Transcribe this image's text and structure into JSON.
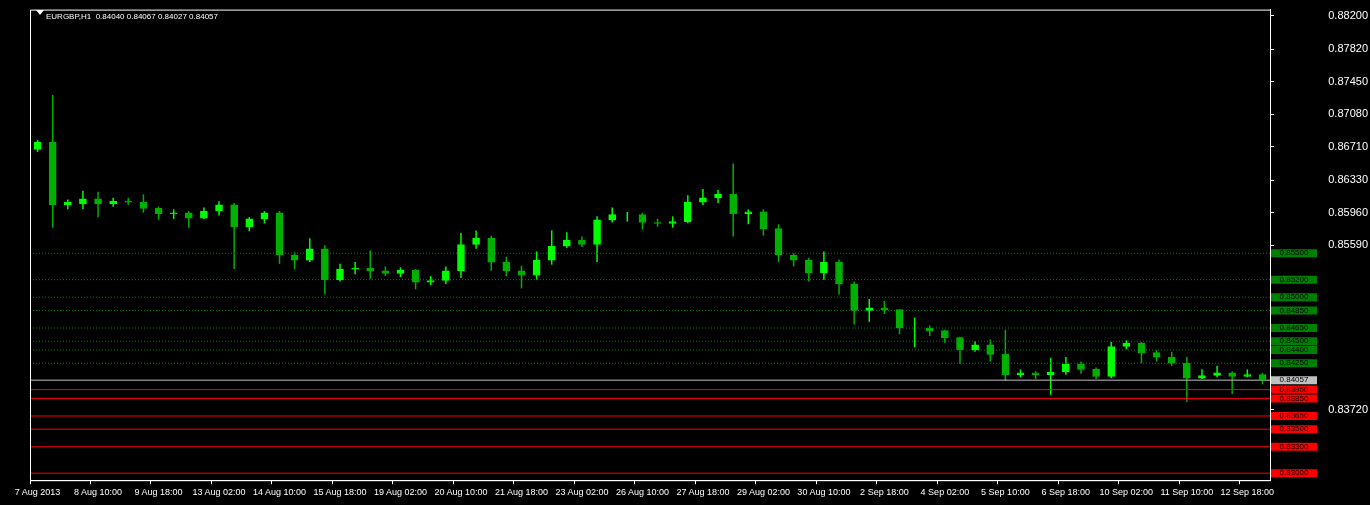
{
  "chart_data": {
    "type": "candlestick",
    "title": "EURGBP,H1  0.84040 0.84067 0.84027 0.84057",
    "categories": [
      "7 Aug 2013",
      null,
      null,
      null,
      "8 Aug 10:00",
      null,
      null,
      null,
      "9 Aug 18:00",
      null,
      null,
      null,
      "13 Aug 02:00",
      null,
      null,
      null,
      "14 Aug 10:00",
      null,
      null,
      null,
      "15 Aug 18:00",
      null,
      null,
      null,
      "19 Aug 02:00",
      null,
      null,
      null,
      "20 Aug 10:00",
      null,
      null,
      null,
      "21 Aug 18:00",
      null,
      null,
      null,
      "23 Aug 02:00",
      null,
      null,
      null,
      "26 Aug 10:00",
      null,
      null,
      null,
      "27 Aug 18:00",
      null,
      null,
      null,
      "29 Aug 02:00",
      null,
      null,
      null,
      "30 Aug 10:00",
      null,
      null,
      null,
      "2 Sep 18:00",
      null,
      null,
      null,
      "4 Sep 02:00",
      null,
      null,
      null,
      "5 Sep 10:00",
      null,
      null,
      null,
      "6 Sep 18:00",
      null,
      null,
      null,
      "10 Sep 02:00",
      null,
      null,
      null,
      "11 Sep 10:00",
      null,
      null,
      null,
      "12 Sep 18:00",
      null
    ],
    "colors": [
      "#00ff00",
      "#00b000",
      "#00ff00",
      "#00ff00",
      "#00b000",
      "#00ff00",
      "#00b000",
      "#00b000",
      "#00b000",
      "#00ff00",
      "#00b000",
      "#00ff00",
      "#00ff00",
      "#00b000",
      "#00ff00",
      "#00ff00",
      "#00b000",
      "#00b000",
      "#00ff00",
      "#00b000",
      "#00ff00",
      "#00ff00",
      "#00b000",
      "#00b000",
      "#00ff00",
      "#00b000",
      "#00ff00",
      "#00ff00",
      "#00ff00",
      "#00ff00",
      "#00b000",
      "#00b000",
      "#00b000",
      "#00ff00",
      "#00ff00",
      "#00ff00",
      "#00b000",
      "#00ff00",
      "#00ff00",
      "#00ff00",
      "#00b000",
      "#00b000",
      "#00ff00",
      "#00ff00",
      "#00ff00",
      "#00ff00",
      "#00b000",
      "#00ff00",
      "#00b000",
      "#00b000",
      "#00b000",
      "#00b000",
      "#00ff00",
      "#00b000",
      "#00b000",
      "#00ff00",
      "#00b000",
      "#00b000",
      "#00ff00",
      "#00b000",
      "#00b000",
      "#00b000",
      "#00ff00",
      "#00b000",
      "#00b000",
      "#00ff00",
      "#00b000",
      "#00ff00",
      "#00ff00",
      "#00b000",
      "#00b000",
      "#00ff00",
      "#00ff00",
      "#00b000",
      "#00b000",
      "#00b000",
      "#00b000",
      "#00ff00",
      "#00ff00",
      "#00b000",
      "#00ff00",
      "#00b000"
    ],
    "ohlc": [
      [
        0.8668,
        0.8679,
        0.8665,
        0.8676
      ],
      [
        0.8676,
        0.873,
        0.8579,
        0.8605
      ],
      [
        0.8605,
        0.8611,
        0.86,
        0.8608
      ],
      [
        0.8606,
        0.8621,
        0.86,
        0.8612
      ],
      [
        0.8612,
        0.862,
        0.8591,
        0.8606
      ],
      [
        0.8606,
        0.8613,
        0.8603,
        0.8609
      ],
      [
        0.8609,
        0.8613,
        0.8605,
        0.8608
      ],
      [
        0.8608,
        0.8617,
        0.8596,
        0.8601
      ],
      [
        0.8601,
        0.8603,
        0.8588,
        0.8595
      ],
      [
        0.8595,
        0.86,
        0.8589,
        0.8596
      ],
      [
        0.8596,
        0.8598,
        0.8579,
        0.859
      ],
      [
        0.859,
        0.8602,
        0.8589,
        0.8598
      ],
      [
        0.8598,
        0.8609,
        0.8593,
        0.8605
      ],
      [
        0.8605,
        0.8607,
        0.8532,
        0.858
      ],
      [
        0.858,
        0.8591,
        0.8575,
        0.8589
      ],
      [
        0.8589,
        0.8598,
        0.8584,
        0.8596
      ],
      [
        0.8596,
        0.8598,
        0.8538,
        0.8548
      ],
      [
        0.8548,
        0.8551,
        0.8532,
        0.8542
      ],
      [
        0.8542,
        0.8567,
        0.854,
        0.8555
      ],
      [
        0.8555,
        0.8559,
        0.8503,
        0.852
      ],
      [
        0.852,
        0.8538,
        0.8518,
        0.8532
      ],
      [
        0.8532,
        0.854,
        0.8526,
        0.8533
      ],
      [
        0.8533,
        0.8553,
        0.8521,
        0.853
      ],
      [
        0.853,
        0.8535,
        0.8524,
        0.8527
      ],
      [
        0.8527,
        0.8534,
        0.8523,
        0.8531
      ],
      [
        0.8531,
        0.8532,
        0.8509,
        0.8517
      ],
      [
        0.8517,
        0.8524,
        0.8514,
        0.8519
      ],
      [
        0.8519,
        0.8535,
        0.8515,
        0.853
      ],
      [
        0.853,
        0.8573,
        0.8522,
        0.856
      ],
      [
        0.856,
        0.8576,
        0.8555,
        0.8567
      ],
      [
        0.8567,
        0.857,
        0.853,
        0.854
      ],
      [
        0.854,
        0.8546,
        0.8524,
        0.853
      ],
      [
        0.853,
        0.8536,
        0.851,
        0.8525
      ],
      [
        0.8525,
        0.8552,
        0.852,
        0.8542
      ],
      [
        0.8542,
        0.8576,
        0.8537,
        0.8558
      ],
      [
        0.8558,
        0.8574,
        0.8556,
        0.8565
      ],
      [
        0.8565,
        0.8569,
        0.8557,
        0.856
      ],
      [
        0.856,
        0.8592,
        0.854,
        0.8588
      ],
      [
        0.8588,
        0.8602,
        0.8585,
        0.8594
      ],
      [
        0.8594,
        0.8597,
        0.8586,
        0.8594
      ],
      [
        0.8594,
        0.8596,
        0.8577,
        0.8585
      ],
      [
        0.8585,
        0.8589,
        0.858,
        0.8584
      ],
      [
        0.8584,
        0.8592,
        0.8579,
        0.8586
      ],
      [
        0.8586,
        0.8616,
        0.8584,
        0.8608
      ],
      [
        0.8608,
        0.8623,
        0.8605,
        0.8613
      ],
      [
        0.8613,
        0.8622,
        0.8607,
        0.8617
      ],
      [
        0.8617,
        0.8652,
        0.8569,
        0.8595
      ],
      [
        0.8595,
        0.86,
        0.8583,
        0.8597
      ],
      [
        0.8597,
        0.86,
        0.857,
        0.8578
      ],
      [
        0.8578,
        0.8583,
        0.854,
        0.8548
      ],
      [
        0.8548,
        0.855,
        0.8535,
        0.8542
      ],
      [
        0.8542,
        0.8545,
        0.8518,
        0.8528
      ],
      [
        0.8528,
        0.8552,
        0.852,
        0.854
      ],
      [
        0.854,
        0.8543,
        0.8503,
        0.8515
      ],
      [
        0.8515,
        0.8518,
        0.8469,
        0.8485
      ],
      [
        0.8485,
        0.8498,
        0.8472,
        0.8488
      ],
      [
        0.8488,
        0.8496,
        0.8481,
        0.8486
      ],
      [
        0.8486,
        0.8486,
        0.8458,
        0.8465
      ],
      [
        0.8465,
        0.8477,
        0.8443,
        0.8465
      ],
      [
        0.8465,
        0.8468,
        0.8456,
        0.8462
      ],
      [
        0.8462,
        0.8463,
        0.8448,
        0.8454
      ],
      [
        0.8454,
        0.8455,
        0.8424,
        0.844
      ],
      [
        0.844,
        0.845,
        0.8438,
        0.8446
      ],
      [
        0.8446,
        0.8452,
        0.8427,
        0.8435
      ],
      [
        0.8435,
        0.8463,
        0.8405,
        0.8412
      ],
      [
        0.8412,
        0.8418,
        0.8409,
        0.8414
      ],
      [
        0.8414,
        0.8416,
        0.8407,
        0.8412
      ],
      [
        0.8412,
        0.8431,
        0.8389,
        0.8415
      ],
      [
        0.8415,
        0.8432,
        0.8412,
        0.8424
      ],
      [
        0.8424,
        0.8427,
        0.8413,
        0.8418
      ],
      [
        0.8418,
        0.842,
        0.8407,
        0.841
      ],
      [
        0.841,
        0.8449,
        0.8408,
        0.8444
      ],
      [
        0.8444,
        0.8451,
        0.8441,
        0.8448
      ],
      [
        0.8448,
        0.8449,
        0.8425,
        0.8437
      ],
      [
        0.8437,
        0.844,
        0.8427,
        0.8432
      ],
      [
        0.8432,
        0.8438,
        0.8422,
        0.8425
      ],
      [
        0.8425,
        0.8432,
        0.8381,
        0.8408
      ],
      [
        0.8408,
        0.8418,
        0.8407,
        0.8411
      ],
      [
        0.8411,
        0.8422,
        0.8409,
        0.8414
      ],
      [
        0.8414,
        0.8416,
        0.839,
        0.841
      ],
      [
        0.841,
        0.8418,
        0.8409,
        0.8412
      ],
      [
        0.8412,
        0.8414,
        0.8401,
        0.84057
      ]
    ],
    "ylim": [
      0.8292,
      0.8827
    ],
    "yticks": [
      {
        "value": 0.882,
        "label": "0.88200"
      },
      {
        "value": 0.8782,
        "label": "0.87820"
      },
      {
        "value": 0.8745,
        "label": "0.87450"
      },
      {
        "value": 0.8708,
        "label": "0.87080"
      },
      {
        "value": 0.8671,
        "label": "0.86710"
      },
      {
        "value": 0.8633,
        "label": "0.86330"
      },
      {
        "value": 0.8596,
        "label": "0.85960"
      },
      {
        "value": 0.8559,
        "label": "0.85590"
      },
      {
        "value": 0.8372,
        "label": "0.83720"
      }
    ],
    "ref_lines": [
      {
        "axis": "y",
        "value": 0.855,
        "label": "0.85500",
        "color": "#008000",
        "line_style": "dotted"
      },
      {
        "axis": "y",
        "value": 0.852,
        "label": "0.85200",
        "color": "#008000",
        "line_style": "dotted"
      },
      {
        "axis": "y",
        "value": 0.85,
        "label": "0.85000",
        "color": "#008000",
        "line_style": "dotted"
      },
      {
        "axis": "y",
        "value": 0.8485,
        "label": "0.84850",
        "color": "#008000",
        "line_style": "dotted"
      },
      {
        "axis": "y",
        "value": 0.8465,
        "label": "0.84650",
        "color": "#008000",
        "line_style": "dotted"
      },
      {
        "axis": "y",
        "value": 0.845,
        "label": "0.84500",
        "color": "#008000",
        "line_style": "dotted"
      },
      {
        "axis": "y",
        "value": 0.844,
        "label": "0.84400",
        "color": "#008000",
        "line_style": "dotted"
      },
      {
        "axis": "y",
        "value": 0.8425,
        "label": "0.84250",
        "color": "#008000",
        "line_style": "dotted"
      },
      {
        "axis": "y",
        "value": 0.84057,
        "label": "0.84057",
        "color": "#c0c0c0",
        "line_style": "solid"
      },
      {
        "axis": "y",
        "value": 0.8395,
        "label": "0.83950",
        "color": "#ff0000",
        "line_style": "solid"
      },
      {
        "axis": "y",
        "value": 0.8385,
        "label": "0.83850",
        "color": "#ff0000",
        "line_style": "solid"
      },
      {
        "axis": "y",
        "value": 0.8365,
        "label": "0.83650",
        "color": "#ff0000",
        "line_style": "solid"
      },
      {
        "axis": "y",
        "value": 0.835,
        "label": "0.83500",
        "color": "#ff0000",
        "line_style": "solid"
      },
      {
        "axis": "y",
        "value": 0.833,
        "label": "0.83300",
        "color": "#ff0000",
        "line_style": "solid"
      },
      {
        "axis": "y",
        "value": 0.83,
        "label": "0.83000",
        "color": "#ff0000",
        "line_style": "solid"
      }
    ],
    "grid": false,
    "legend": false
  }
}
